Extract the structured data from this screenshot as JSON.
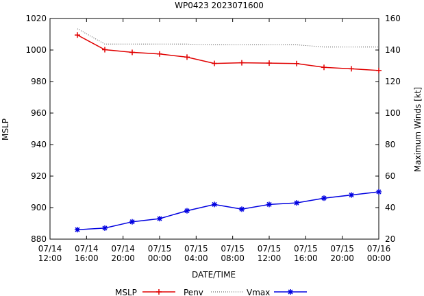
{
  "chart_data": {
    "type": "line",
    "title": "WP0423 2023071600",
    "xlabel": "DATE/TIME",
    "ylabel_left": "MSLP",
    "ylabel_right": "Maximum Winds [kt]",
    "x_hours": [
      3,
      6,
      9,
      12,
      15,
      18,
      21,
      24,
      27,
      30,
      33,
      36
    ],
    "xlim_hours": [
      0,
      36
    ],
    "x_ticks": [
      {
        "hour": 0,
        "date": "07/14",
        "time": "12:00"
      },
      {
        "hour": 4,
        "date": "07/14",
        "time": "16:00"
      },
      {
        "hour": 8,
        "date": "07/14",
        "time": "20:00"
      },
      {
        "hour": 12,
        "date": "07/15",
        "time": "00:00"
      },
      {
        "hour": 16,
        "date": "07/15",
        "time": "04:00"
      },
      {
        "hour": 20,
        "date": "07/15",
        "time": "08:00"
      },
      {
        "hour": 24,
        "date": "07/15",
        "time": "12:00"
      },
      {
        "hour": 28,
        "date": "07/15",
        "time": "16:00"
      },
      {
        "hour": 32,
        "date": "07/15",
        "time": "20:00"
      },
      {
        "hour": 36,
        "date": "07/16",
        "time": "00:00"
      }
    ],
    "ylim_left": [
      880,
      1020
    ],
    "yticks_left": [
      "880",
      "900",
      "920",
      "940",
      "960",
      "980",
      "1000",
      "1020"
    ],
    "ylim_right": [
      20,
      160
    ],
    "yticks_right": [
      "20",
      "40",
      "60",
      "80",
      "100",
      "120",
      "140",
      "160"
    ],
    "series": [
      {
        "name": "MSLP",
        "axis": "left",
        "style": "none",
        "color": "#000000",
        "values": []
      },
      {
        "name": "Penv",
        "axis": "left",
        "style": "solid-plus",
        "color": "#e00000",
        "values": [
          1009.5,
          1000.2,
          998.5,
          997.5,
          995.5,
          991.5,
          991.9,
          991.7,
          991.4,
          989.0,
          988.1,
          987.0
        ]
      },
      {
        "name": "",
        "axis": "left",
        "style": "dotted",
        "color": "#444444",
        "values": [
          1013.5,
          1003.8,
          1003.8,
          1003.8,
          1003.8,
          1003.3,
          1003.3,
          1003.3,
          1003.3,
          1001.9,
          1001.9,
          1001.9
        ]
      },
      {
        "name": "Vmax",
        "axis": "right",
        "style": "solid-star",
        "color": "#0000e0",
        "values": [
          26,
          27,
          31,
          33,
          38,
          42,
          39,
          42,
          43,
          46,
          48,
          50
        ]
      }
    ],
    "legend_position": "bottom",
    "legend_labels": [
      "MSLP",
      "Penv",
      "Vmax"
    ]
  }
}
